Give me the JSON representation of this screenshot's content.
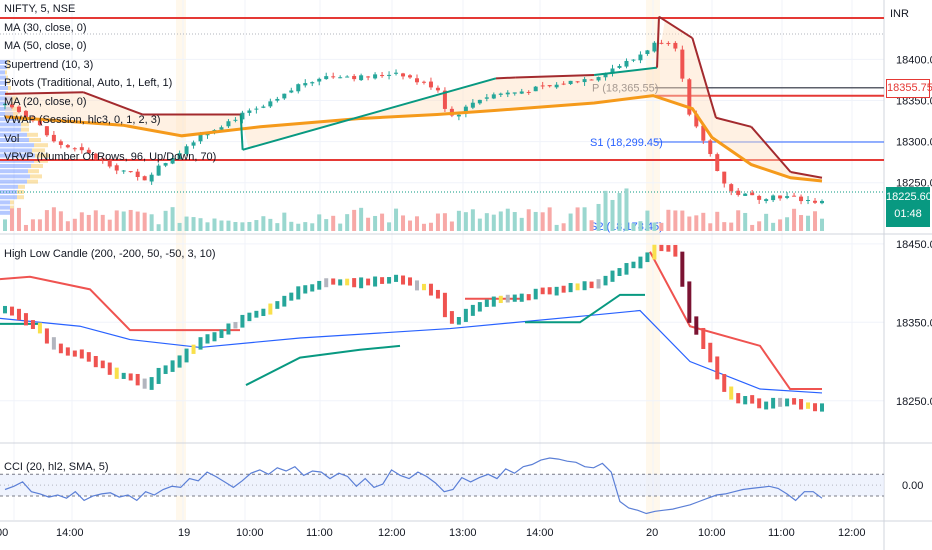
{
  "header": {
    "symbol": "NIFTY, 5, NSE",
    "currency": "INR"
  },
  "legend_main": [
    "MA (30, close, 0)",
    "MA (50, close, 0)",
    "Supertrend (10, 3)",
    "Pivots (Traditional, Auto, 1, Left, 1)",
    "MA (20, close, 0)",
    "VWAP (Session, hlc3, 0, 1, 2, 3)",
    "Vol",
    "VRVP (Number Of Rows, 96, Up/Down, 70)"
  ],
  "legend_mid": "High Low Candle (200, -200, 50, -50, 3, 10)",
  "legend_cci": "CCI (20, hl2, SMA, 5)",
  "price_boxes": {
    "level": "18355.75",
    "last": "18225.60",
    "countdown": "01:48"
  },
  "pivot_labels": {
    "p": "P (18,365.55)",
    "s1": "S1 (18,299.45)",
    "s2": "S2 (18,178.45)"
  },
  "colors": {
    "up": "#26a69a",
    "down": "#ef5350",
    "ma": "#f59a1b",
    "supertrend_up": "#089981",
    "supertrend_down": "#a32a2e",
    "resistance": "#e53935",
    "pivot": "#2962ff",
    "cci": "#5b7fd6"
  },
  "chart_data": [
    {
      "type": "candlestick",
      "panel": "main",
      "title": "NIFTY, 5, NSE",
      "xlabels": [
        "14:00",
        "19",
        "10:00",
        "11:00",
        "12:00",
        "13:00",
        "14:00",
        "20",
        "10:00",
        "11:00",
        "12:00"
      ],
      "ylabels": [
        18400,
        18350,
        18300,
        18250
      ],
      "ylim": [
        18190,
        18465
      ],
      "close_path": [
        [
          0,
          18345
        ],
        [
          6,
          18340
        ],
        [
          12,
          18330
        ],
        [
          18,
          18318
        ],
        [
          24,
          18300
        ],
        [
          30,
          18295
        ],
        [
          36,
          18290
        ],
        [
          42,
          18285
        ],
        [
          48,
          18278
        ],
        [
          52,
          18275
        ],
        [
          56,
          18268
        ],
        [
          62,
          18263
        ],
        [
          66,
          18258
        ],
        [
          70,
          18252
        ],
        [
          74,
          18261
        ],
        [
          80,
          18272
        ],
        [
          90,
          18290
        ],
        [
          100,
          18310
        ],
        [
          110,
          18320
        ],
        [
          120,
          18332
        ],
        [
          130,
          18340
        ],
        [
          140,
          18352
        ],
        [
          150,
          18370
        ],
        [
          160,
          18378
        ],
        [
          170,
          18381
        ],
        [
          180,
          18378
        ],
        [
          190,
          18380
        ],
        [
          200,
          18385
        ],
        [
          210,
          18373
        ],
        [
          220,
          18366
        ],
        [
          226,
          18330
        ],
        [
          232,
          18336
        ],
        [
          240,
          18351
        ],
        [
          250,
          18358
        ],
        [
          260,
          18360
        ],
        [
          270,
          18364
        ],
        [
          280,
          18368
        ],
        [
          290,
          18374
        ],
        [
          300,
          18378
        ],
        [
          310,
          18390
        ],
        [
          320,
          18400
        ],
        [
          330,
          18418
        ],
        [
          336,
          18425
        ],
        [
          342,
          18415
        ],
        [
          348,
          18332
        ],
        [
          356,
          18300
        ],
        [
          362,
          18270
        ],
        [
          368,
          18240
        ],
        [
          376,
          18235
        ],
        [
          384,
          18232
        ],
        [
          392,
          18234
        ],
        [
          400,
          18232
        ],
        [
          410,
          18228
        ],
        [
          416,
          18226
        ]
      ],
      "series": [
        {
          "name": "MA (30, close, 0)",
          "points": [
            [
              0,
              18330
            ],
            [
              60,
              18320
            ],
            [
              90,
              18307
            ],
            [
              130,
              18318
            ],
            [
              180,
              18328
            ],
            [
              220,
              18333
            ],
            [
              250,
              18338
            ],
            [
              300,
              18347
            ],
            [
              330,
              18356
            ],
            [
              350,
              18340
            ],
            [
              360,
              18305
            ],
            [
              380,
              18272
            ],
            [
              400,
              18256
            ],
            [
              416,
              18252
            ]
          ]
        },
        {
          "name": "Supertrend (10, 3)",
          "points": [
            [
              0,
              18358
            ],
            [
              40,
              18360
            ],
            [
              70,
              18333
            ],
            [
              120,
              18333
            ],
            [
              121,
              18290
            ],
            [
              250,
              18377
            ],
            [
              260,
              18378
            ],
            [
              300,
              18381
            ],
            [
              332,
              18390
            ],
            [
              333,
              18452
            ],
            [
              350,
              18426
            ],
            [
              362,
              18329
            ],
            [
              380,
              18318
            ],
            [
              400,
              18263
            ],
            [
              416,
              18256
            ]
          ]
        },
        {
          "name": "Pivot P",
          "value": 18365.55
        },
        {
          "name": "Pivot S1",
          "value": 18299.45
        },
        {
          "name": "Resistance level",
          "value": 18355.75
        }
      ]
    },
    {
      "type": "candlestick",
      "panel": "middle",
      "title": "High Low Candle (200, -200, 50, -50, 3, 10)",
      "ylabels": [
        18450,
        18350,
        18250
      ],
      "ylim": [
        18200,
        18460
      ]
    },
    {
      "type": "line",
      "panel": "bottom",
      "title": "CCI (20, hl2, SMA, 5)",
      "ylabels": [
        0.0
      ],
      "ylim": [
        -320,
        360
      ],
      "bands": [
        100,
        -100
      ],
      "values": [
        -40,
        -10,
        30,
        -60,
        -80,
        -110,
        -90,
        -120,
        -60,
        -140,
        -100,
        -80,
        -70,
        -110,
        -90,
        -140,
        -60,
        -90,
        -40,
        -10,
        -20,
        60,
        40,
        120,
        80,
        30,
        -20,
        40,
        110,
        140,
        100,
        160,
        130,
        170,
        90,
        130,
        120,
        60,
        110,
        80,
        -10,
        60,
        -20,
        10,
        140,
        90,
        60,
        120,
        80,
        20,
        -60,
        -40,
        70,
        30,
        70,
        100,
        60,
        150,
        110,
        170,
        190,
        230,
        250,
        240,
        220,
        210,
        170,
        160,
        200,
        120,
        -150,
        -210,
        -230,
        -260,
        -240,
        -230,
        -220,
        -200,
        -180,
        -150,
        -120,
        -90,
        -80,
        -60,
        -40,
        -30,
        -20,
        -10,
        -30,
        -80,
        -140,
        -60,
        -60,
        -120
      ]
    }
  ]
}
